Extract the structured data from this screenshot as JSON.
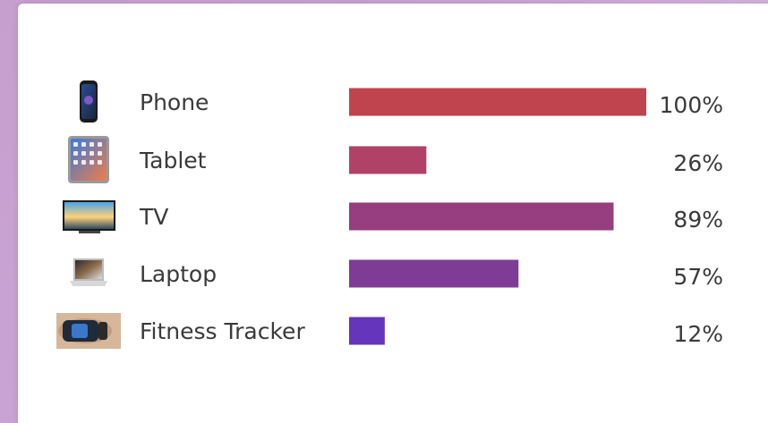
{
  "chart_data": {
    "type": "bar",
    "orientation": "horizontal",
    "categories": [
      "Phone",
      "Tablet",
      "TV",
      "Laptop",
      "Fitness Tracker"
    ],
    "values": [
      100,
      26,
      89,
      57,
      12
    ],
    "value_labels": [
      "100%",
      "26%",
      "89%",
      "57%",
      "12%"
    ],
    "icons": [
      "phone-icon",
      "tablet-icon",
      "tv-icon",
      "laptop-icon",
      "fitness-tracker-icon"
    ],
    "colors": [
      "#c0444d",
      "#b04268",
      "#963e7f",
      "#7e3c96",
      "#6535bb"
    ],
    "xlim": [
      0,
      100
    ],
    "grid": false,
    "legend": "none"
  }
}
